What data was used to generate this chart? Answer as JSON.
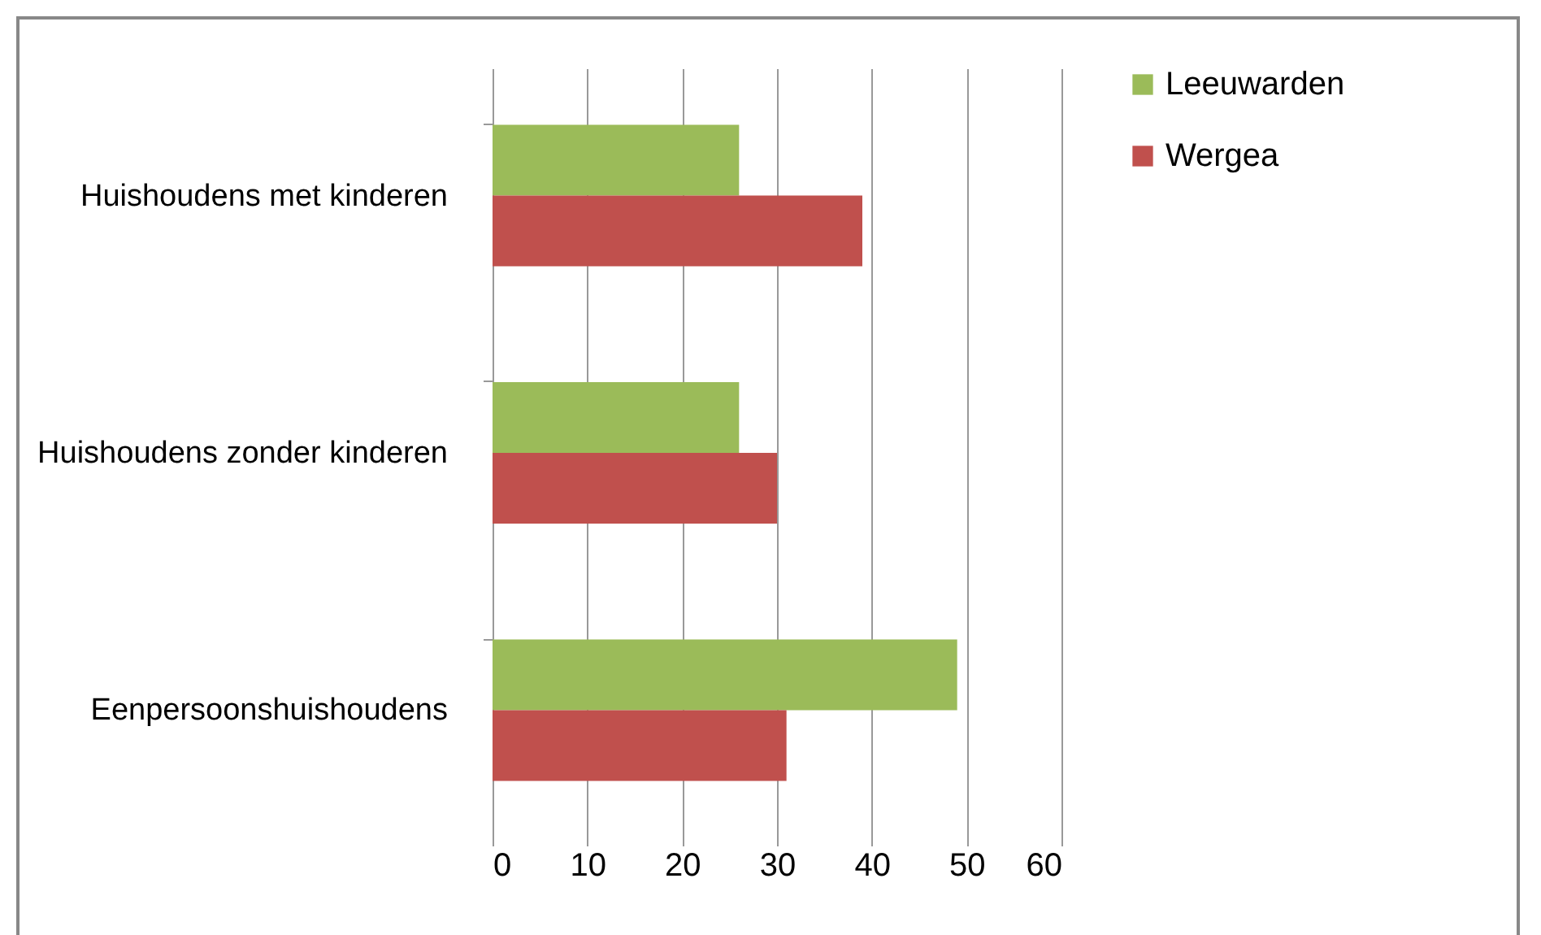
{
  "chart_data": {
    "type": "bar",
    "orientation": "horizontal",
    "categories": [
      "Huishoudens met kinderen",
      "Huishoudens zonder kinderen",
      "Eenpersoonshuishoudens"
    ],
    "series": [
      {
        "name": "Leeuwarden",
        "color": "#9bbb59",
        "values": [
          26,
          26,
          49
        ]
      },
      {
        "name": "Wergea",
        "color": "#c0504d",
        "values": [
          39,
          30,
          31
        ]
      }
    ],
    "xlim": [
      0,
      60
    ],
    "xticks": [
      0,
      10,
      20,
      30,
      40,
      50,
      60
    ],
    "grid": "x",
    "legend": "right"
  }
}
